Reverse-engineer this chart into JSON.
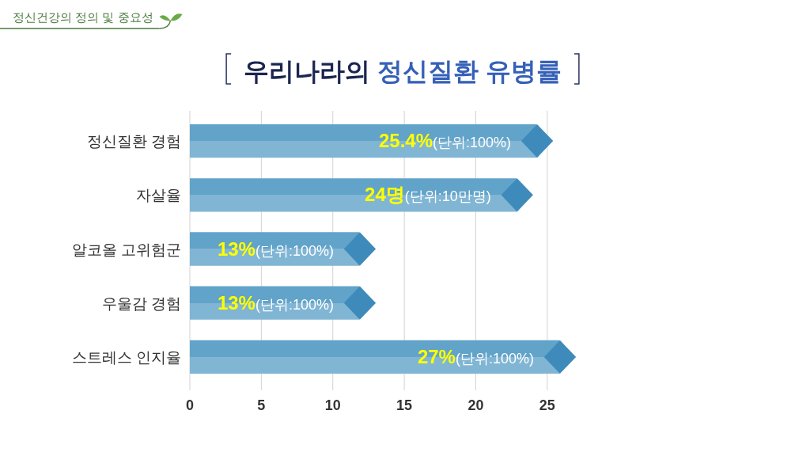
{
  "chart_data": {
    "type": "bar",
    "orientation": "horizontal",
    "title": "우리나라의 정신질환 유병률",
    "annotations": [
      "정신건강의 정의 및 중요성"
    ],
    "categories": [
      "정신질환 경험",
      "자살율",
      "알코올 고위험군",
      "우울감 경험",
      "스트레스 인지율"
    ],
    "values": [
      25.4,
      24,
      13,
      13,
      27
    ],
    "value_labels": [
      "25.4%(단위:100%)",
      "24명(단위:10만명)",
      "13%(단위:100%)",
      "13%(단위:100%)",
      "27%(단위:100%)"
    ],
    "color": "#62a3c9",
    "xlim": [
      0,
      27
    ],
    "xticks": [
      0,
      5,
      10,
      15,
      20,
      25
    ],
    "grid": "x"
  }
}
